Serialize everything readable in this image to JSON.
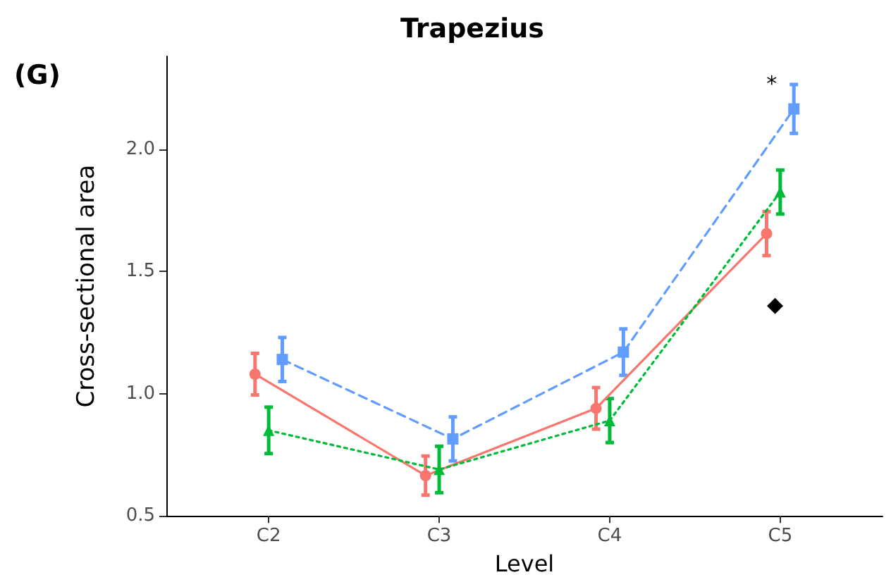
{
  "chart_data": {
    "type": "line",
    "title": "Trapezius",
    "xlabel": "Level",
    "ylabel": "Cross-sectional area",
    "categories": [
      "C2",
      "C3",
      "C4",
      "C5"
    ],
    "series": [
      {
        "color": "#f8766d",
        "marker": "circle",
        "line_style": "solid",
        "values": [
          1.08,
          0.665,
          0.94,
          1.655
        ],
        "errors": [
          0.085,
          0.08,
          0.085,
          0.09
        ]
      },
      {
        "color": "#00ba38",
        "marker": "triangle",
        "line_style": "dotted",
        "values": [
          0.85,
          0.69,
          0.89,
          1.825
        ],
        "errors": [
          0.095,
          0.095,
          0.09,
          0.09
        ]
      },
      {
        "color": "#619cff",
        "marker": "square",
        "line_style": "dashed",
        "values": [
          1.14,
          0.815,
          1.17,
          2.165
        ],
        "errors": [
          0.09,
          0.09,
          0.095,
          0.1
        ]
      }
    ],
    "ylim": [
      0.5,
      2.38
    ],
    "yticks": [
      0.5,
      {
        "value": 1,
        "label": "1.0"
      },
      1.5,
      {
        "value": 2,
        "label": "2.0"
      }
    ],
    "grid": false,
    "annotations": [
      "(G)",
      "*",
      "◆"
    ]
  }
}
